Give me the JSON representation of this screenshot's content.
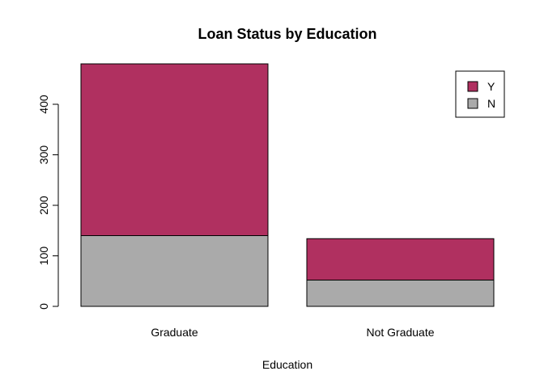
{
  "chart_data": {
    "type": "bar",
    "stacked": true,
    "title": "Loan Status by Education",
    "xlabel": "Education",
    "ylabel": "",
    "categories": [
      "Graduate",
      "Not Graduate"
    ],
    "series": [
      {
        "name": "N",
        "values": [
          140,
          52
        ],
        "color": "#AAAAAA"
      },
      {
        "name": "Y",
        "values": [
          340,
          82
        ],
        "color": "#B03060"
      }
    ],
    "ylim": [
      0,
      480
    ],
    "yticks": [
      0,
      100,
      200,
      300,
      400
    ],
    "grid": false,
    "legend": {
      "position": "top-right",
      "order": [
        "Y",
        "N"
      ]
    }
  }
}
